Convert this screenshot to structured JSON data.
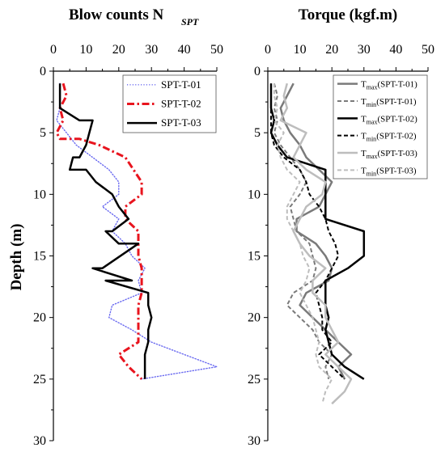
{
  "chart_data": [
    {
      "type": "line",
      "title": "Blow counts N",
      "title_sub": "SPT",
      "xlabel": "",
      "ylabel": "Depth (m)",
      "xlim": [
        0,
        50
      ],
      "ylim": [
        0,
        30
      ],
      "x_axis_position": "top",
      "y_inverted": true,
      "x_ticks": [
        "0",
        "10",
        "20",
        "30",
        "40",
        "50"
      ],
      "y_ticks": [
        "0",
        "5",
        "10",
        "15",
        "20",
        "25",
        "30"
      ],
      "legend_position": "top-right",
      "series": [
        {
          "name": "SPT-T-01",
          "color": "#6a6af0",
          "style": "dotted",
          "points": [
            [
              2,
              1
            ],
            [
              2,
              2
            ],
            [
              2,
              3
            ],
            [
              1,
              4
            ],
            [
              4,
              5
            ],
            [
              7,
              6
            ],
            [
              12,
              7
            ],
            [
              17,
              8
            ],
            [
              20,
              9
            ],
            [
              20,
              10
            ],
            [
              15,
              11
            ],
            [
              20,
              12
            ],
            [
              18,
              13
            ],
            [
              22,
              14
            ],
            [
              24,
              15
            ],
            [
              28,
              16
            ],
            [
              26,
              17
            ],
            [
              27,
              18
            ],
            [
              18,
              19
            ],
            [
              17,
              20
            ],
            [
              24,
              21
            ],
            [
              30,
              22
            ],
            [
              40,
              23
            ],
            [
              50,
              24
            ],
            [
              27,
              25
            ]
          ]
        },
        {
          "name": "SPT-T-02",
          "color": "#e8141e",
          "style": "dashdot",
          "points": [
            [
              3,
              1
            ],
            [
              4,
              2
            ],
            [
              2,
              3
            ],
            [
              3,
              4
            ],
            [
              1,
              5
            ],
            [
              2,
              5.5
            ],
            [
              8,
              5.5
            ],
            [
              14,
              6
            ],
            [
              22,
              7
            ],
            [
              27,
              9
            ],
            [
              27,
              10
            ],
            [
              22,
              11
            ],
            [
              22,
              12
            ],
            [
              26,
              13
            ],
            [
              26,
              14
            ],
            [
              26,
              15
            ],
            [
              27,
              16
            ],
            [
              27,
              17
            ],
            [
              27,
              18
            ],
            [
              26,
              19
            ],
            [
              26,
              20
            ],
            [
              26,
              21
            ],
            [
              26,
              22
            ],
            [
              20,
              23
            ],
            [
              23,
              24
            ],
            [
              27,
              25
            ]
          ]
        },
        {
          "name": "SPT-T-03",
          "color": "#000000",
          "style": "solid",
          "points": [
            [
              2,
              1
            ],
            [
              2,
              2
            ],
            [
              2,
              3
            ],
            [
              8,
              4
            ],
            [
              12,
              4
            ],
            [
              11,
              5
            ],
            [
              10,
              6
            ],
            [
              8,
              7
            ],
            [
              6,
              7
            ],
            [
              5,
              8
            ],
            [
              10,
              8
            ],
            [
              13,
              9
            ],
            [
              18,
              10
            ],
            [
              20,
              11
            ],
            [
              23,
              12
            ],
            [
              18,
              13
            ],
            [
              16,
              13
            ],
            [
              20,
              14
            ],
            [
              26,
              14
            ],
            [
              15,
              16
            ],
            [
              12,
              16
            ],
            [
              24,
              17
            ],
            [
              16,
              17
            ],
            [
              29,
              18
            ],
            [
              29,
              19
            ],
            [
              30,
              20
            ],
            [
              29,
              21
            ],
            [
              29,
              22
            ],
            [
              28,
              23
            ],
            [
              28,
              24
            ],
            [
              28,
              25
            ]
          ]
        }
      ]
    },
    {
      "type": "line",
      "title": "Torque (kgf.m)",
      "xlabel": "",
      "ylabel": "",
      "xlim": [
        0,
        50
      ],
      "ylim": [
        0,
        30
      ],
      "x_axis_position": "top",
      "y_inverted": true,
      "x_ticks": [
        "0",
        "10",
        "20",
        "30",
        "40",
        "50"
      ],
      "y_ticks": [
        "0",
        "5",
        "10",
        "15",
        "20",
        "25",
        "30"
      ],
      "legend_position": "top-right",
      "series": [
        {
          "name": "max",
          "label_main": "T",
          "label_sub": "max",
          "label_tail": "(SPT-T-01)",
          "color": "#7a7a7a",
          "style": "solid",
          "points": [
            [
              8,
              1
            ],
            [
              6,
              2
            ],
            [
              4,
              3
            ],
            [
              5,
              4
            ],
            [
              7,
              5
            ],
            [
              10,
              6
            ],
            [
              12,
              7
            ],
            [
              16,
              8
            ],
            [
              20,
              9
            ],
            [
              18,
              10
            ],
            [
              16,
              11
            ],
            [
              9,
              12
            ],
            [
              9,
              13
            ],
            [
              15,
              14
            ],
            [
              18,
              15
            ],
            [
              20,
              16
            ],
            [
              19,
              17
            ],
            [
              12,
              18
            ],
            [
              10,
              19
            ],
            [
              14,
              20
            ],
            [
              18,
              21
            ],
            [
              22,
              22
            ],
            [
              26,
              23
            ],
            [
              22,
              24
            ],
            [
              24,
              25
            ]
          ]
        },
        {
          "name": "min",
          "label_main": "T",
          "label_sub": "min",
          "label_tail": "(SPT-T-01)",
          "color": "#7a7a7a",
          "style": "dashed",
          "points": [
            [
              2,
              1
            ],
            [
              3,
              2
            ],
            [
              2,
              3
            ],
            [
              3,
              4
            ],
            [
              2,
              5
            ],
            [
              4,
              6
            ],
            [
              7,
              7
            ],
            [
              10,
              8
            ],
            [
              12,
              9
            ],
            [
              10,
              10
            ],
            [
              7,
              11
            ],
            [
              8,
              12
            ],
            [
              9,
              13
            ],
            [
              13,
              14
            ],
            [
              14,
              15
            ],
            [
              15,
              16
            ],
            [
              14,
              17
            ],
            [
              8,
              18
            ],
            [
              6,
              19
            ],
            [
              10,
              20
            ],
            [
              14,
              21
            ],
            [
              16,
              22
            ],
            [
              20,
              23
            ],
            [
              18,
              24
            ],
            [
              19,
              25
            ]
          ]
        },
        {
          "name": "max",
          "label_main": "T",
          "label_sub": "max",
          "label_tail": "(SPT-T-02)",
          "color": "#000000",
          "style": "solid",
          "points": [
            [
              1,
              1
            ],
            [
              1,
              2
            ],
            [
              1,
              3
            ],
            [
              2,
              4
            ],
            [
              1,
              5
            ],
            [
              3,
              6
            ],
            [
              6,
              7
            ],
            [
              18,
              8
            ],
            [
              18,
              9
            ],
            [
              18,
              10
            ],
            [
              18,
              11
            ],
            [
              18,
              12
            ],
            [
              30,
              13
            ],
            [
              30,
              14
            ],
            [
              30,
              15
            ],
            [
              25,
              16
            ],
            [
              18,
              17
            ],
            [
              18,
              18
            ],
            [
              18,
              19
            ],
            [
              19,
              20
            ],
            [
              18,
              21
            ],
            [
              19,
              22
            ],
            [
              20,
              23
            ],
            [
              24,
              24
            ],
            [
              30,
              25
            ]
          ]
        },
        {
          "name": "min",
          "label_main": "T",
          "label_sub": "min",
          "label_tail": "(SPT-T-02)",
          "color": "#000000",
          "style": "dashed",
          "points": [
            [
              1,
              1
            ],
            [
              1,
              2
            ],
            [
              1,
              3
            ],
            [
              1,
              4
            ],
            [
              1,
              5
            ],
            [
              2,
              6
            ],
            [
              5,
              7
            ],
            [
              10,
              8
            ],
            [
              12,
              9
            ],
            [
              13,
              10
            ],
            [
              16,
              11
            ],
            [
              18,
              12
            ],
            [
              19,
              13
            ],
            [
              21,
              14
            ],
            [
              22,
              15
            ],
            [
              20,
              16
            ],
            [
              18,
              17
            ],
            [
              15,
              18
            ],
            [
              16,
              19
            ],
            [
              17,
              20
            ],
            [
              17,
              21
            ],
            [
              20,
              22
            ],
            [
              16,
              23
            ],
            [
              20,
              24
            ],
            [
              24,
              25
            ]
          ]
        },
        {
          "name": "max",
          "label_main": "T",
          "label_sub": "max",
          "label_tail": "(SPT-T-03)",
          "color": "#bdbdbd",
          "style": "solid",
          "points": [
            [
              6,
              1
            ],
            [
              5,
              2
            ],
            [
              6,
              3
            ],
            [
              4,
              4
            ],
            [
              12,
              5
            ],
            [
              10,
              6
            ],
            [
              8,
              7
            ],
            [
              12,
              8
            ],
            [
              18,
              9
            ],
            [
              17,
              10
            ],
            [
              12,
              11
            ],
            [
              10,
              12
            ],
            [
              8,
              13
            ],
            [
              10,
              14
            ],
            [
              13,
              15
            ],
            [
              18,
              16
            ],
            [
              14,
              17
            ],
            [
              14,
              18
            ],
            [
              18,
              19
            ],
            [
              18,
              20
            ],
            [
              20,
              21
            ],
            [
              22,
              22
            ],
            [
              18,
              23
            ],
            [
              22,
              24
            ],
            [
              26,
              25
            ],
            [
              24,
              26
            ],
            [
              20,
              27
            ]
          ]
        },
        {
          "name": "min",
          "label_main": "T",
          "label_sub": "min",
          "label_tail": "(SPT-T-03)",
          "color": "#bdbdbd",
          "style": "dashed",
          "points": [
            [
              2,
              1
            ],
            [
              2,
              2
            ],
            [
              3,
              3
            ],
            [
              2,
              4
            ],
            [
              5,
              5
            ],
            [
              3,
              6
            ],
            [
              4,
              7
            ],
            [
              6,
              8
            ],
            [
              10,
              9
            ],
            [
              8,
              10
            ],
            [
              6,
              11
            ],
            [
              6,
              12
            ],
            [
              8,
              13
            ],
            [
              10,
              14
            ],
            [
              11,
              15
            ],
            [
              13,
              16
            ],
            [
              12,
              17
            ],
            [
              10,
              18
            ],
            [
              12,
              19
            ],
            [
              14,
              20
            ],
            [
              15,
              21
            ],
            [
              16,
              22
            ],
            [
              15,
              23
            ],
            [
              16,
              24
            ],
            [
              20,
              25
            ],
            [
              18,
              26
            ],
            [
              17,
              27
            ]
          ]
        }
      ]
    }
  ]
}
